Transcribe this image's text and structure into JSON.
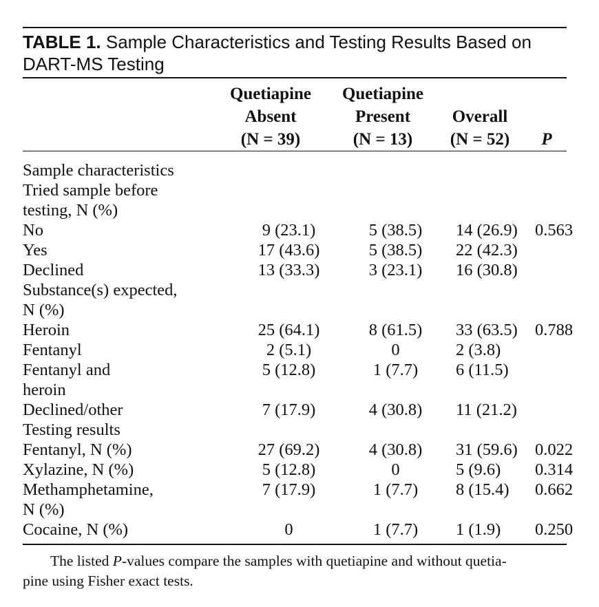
{
  "caption": {
    "label": "TABLE 1.",
    "title": "Sample Characteristics and Testing Results Based on",
    "title_line2": "DART-MS Testing"
  },
  "columns": {
    "absent": [
      "Quetiapine",
      "Absent",
      "(N = 39)"
    ],
    "present": [
      "Quetiapine",
      "Present",
      "(N = 13)"
    ],
    "overall": [
      "",
      "Overall",
      "(N = 52)"
    ],
    "p": "P"
  },
  "rows": [
    {
      "label": "Sample characteristics",
      "level": "lv1",
      "absent": "",
      "present": "",
      "overall": "",
      "p": ""
    },
    {
      "label": "Tried sample before",
      "level": "lv2",
      "absent": "",
      "present": "",
      "overall": "",
      "p": ""
    },
    {
      "label": "testing, N (%)",
      "level": "lv2c",
      "absent": "",
      "present": "",
      "overall": "",
      "p": ""
    },
    {
      "label": "No",
      "level": "lv3",
      "absent": "9 (23.1)",
      "present": "5 (38.5)",
      "overall": "14 (26.9)",
      "p": "0.563"
    },
    {
      "label": "Yes",
      "level": "lv3",
      "absent": "17 (43.6)",
      "present": "5 (38.5)",
      "overall": "22 (42.3)",
      "p": ""
    },
    {
      "label": "Declined",
      "level": "lv3",
      "absent": "13 (33.3)",
      "present": "3 (23.1)",
      "overall": "16 (30.8)",
      "p": ""
    },
    {
      "label": "Substance(s) expected,",
      "level": "lv2",
      "absent": "",
      "present": "",
      "overall": "",
      "p": ""
    },
    {
      "label": "N (%)",
      "level": "lv2c",
      "absent": "",
      "present": "",
      "overall": "",
      "p": ""
    },
    {
      "label": "Heroin",
      "level": "lv3",
      "absent": "25 (64.1)",
      "present": "8 (61.5)",
      "overall": "33 (63.5)",
      "p": "0.788"
    },
    {
      "label": "Fentanyl",
      "level": "lv3",
      "absent": "2 (5.1)",
      "present": "0",
      "overall": "2 (3.8)",
      "p": ""
    },
    {
      "label": "Fentanyl and",
      "level": "lv3",
      "absent": "5 (12.8)",
      "present": "1 (7.7)",
      "overall": "6 (11.5)",
      "p": ""
    },
    {
      "label": "heroin",
      "level": "lv3c",
      "absent": "",
      "present": "",
      "overall": "",
      "p": ""
    },
    {
      "label": "Declined/other",
      "level": "lv3",
      "absent": "7 (17.9)",
      "present": "4 (30.8)",
      "overall": "11 (21.2)",
      "p": ""
    },
    {
      "label": "Testing results",
      "level": "lv1",
      "absent": "",
      "present": "",
      "overall": "",
      "p": ""
    },
    {
      "label": "Fentanyl, N (%)",
      "level": "lv2",
      "absent": "27 (69.2)",
      "present": "4 (30.8)",
      "overall": "31 (59.6)",
      "p": "0.022"
    },
    {
      "label": "Xylazine, N (%)",
      "level": "lv2",
      "absent": "5 (12.8)",
      "present": "0",
      "overall": "5 (9.6)",
      "p": "0.314"
    },
    {
      "label": "Methamphetamine,",
      "level": "lv2",
      "absent": "7 (17.9)",
      "present": "1 (7.7)",
      "overall": "8 (15.4)",
      "p": "0.662"
    },
    {
      "label": "N (%)",
      "level": "lv2c",
      "absent": "",
      "present": "",
      "overall": "",
      "p": ""
    },
    {
      "label": "Cocaine, N (%)",
      "level": "lv2",
      "absent": "0",
      "present": "1 (7.7)",
      "overall": "1 (1.9)",
      "p": "0.250"
    }
  ],
  "footnote": {
    "pre": "The listed ",
    "p": "P",
    "line1_rest": "-values compare the samples with quetiapine and without quetia-",
    "line2": "pine using Fisher exact tests."
  }
}
